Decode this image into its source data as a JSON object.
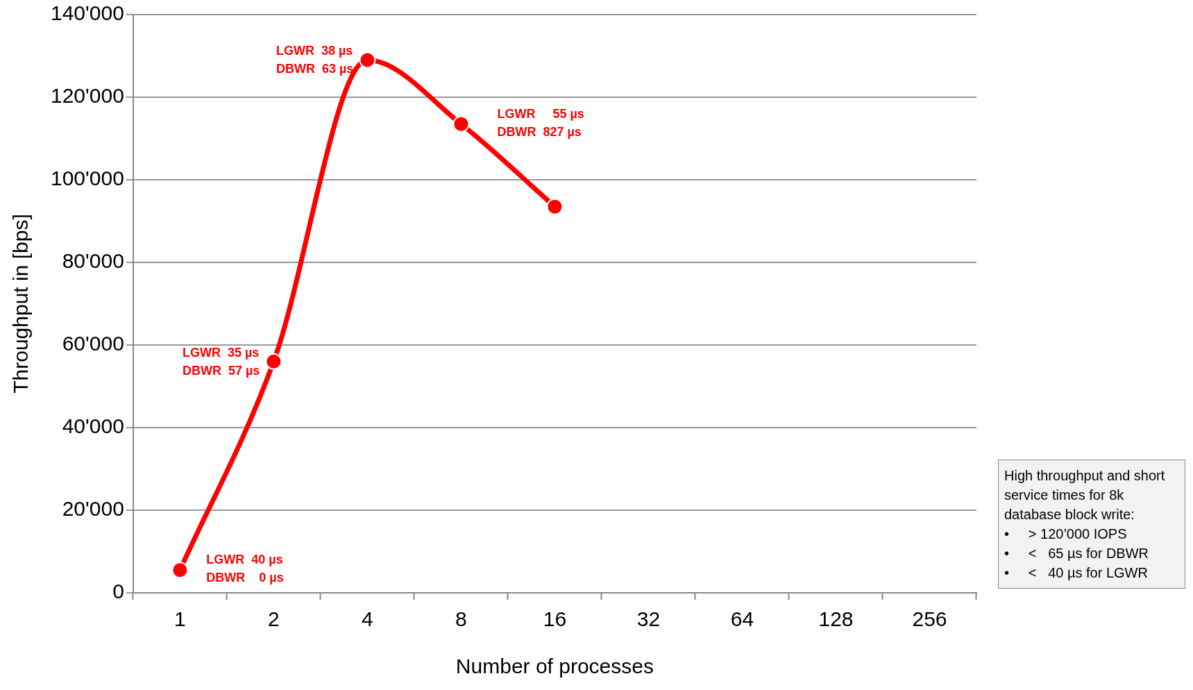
{
  "chart_data": {
    "type": "line",
    "xlabel": "Number of processes",
    "ylabel": "Throughput in [bps]",
    "categories": [
      "1",
      "2",
      "4",
      "8",
      "16",
      "32",
      "64",
      "128",
      "256"
    ],
    "series": [
      {
        "color": "#ff0000",
        "values": [
          5500,
          56000,
          129000,
          113500,
          93500,
          null,
          null,
          null,
          null
        ]
      }
    ],
    "ylim": [
      0,
      140000
    ],
    "yticks": [
      {
        "value": 0,
        "label": "0"
      },
      {
        "value": 20000,
        "label": "20'000"
      },
      {
        "value": 40000,
        "label": "40'000"
      },
      {
        "value": 60000,
        "label": "60'000"
      },
      {
        "value": 80000,
        "label": "80'000"
      },
      {
        "value": 100000,
        "label": "100'000"
      },
      {
        "value": 120000,
        "label": "120'000"
      },
      {
        "value": 140000,
        "label": "140'000"
      }
    ],
    "grid": "y",
    "legend": false,
    "marker": "circle",
    "line_style": "solid",
    "annotations": [
      {
        "text": "LGWR  40 µs\nDBWR    0 µs",
        "x": "1",
        "y": 5500
      },
      {
        "text": "LGWR  35 µs\nDBWR  57 µs",
        "x": "2",
        "y": 56000
      },
      {
        "text": "LGWR  38 µs\nDBWR  63 µs",
        "x": "4",
        "y": 129000
      },
      {
        "text": "LGWR     55 µs\nDBWR  827 µs",
        "x": "8",
        "y": 113500
      },
      "High throughput and short service times for 8k database block write:\n•     > 120’000 IOPS\n•     <   65 µs for DBWR\n•     <   40 µs for LGWR"
    ]
  }
}
